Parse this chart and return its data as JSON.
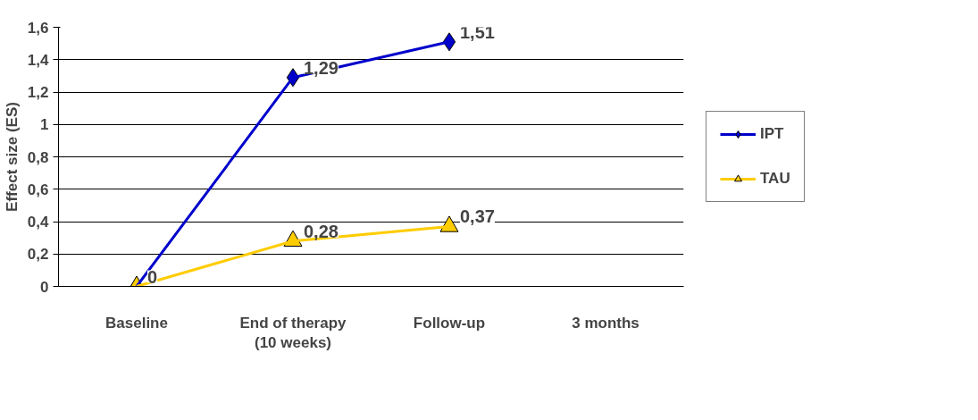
{
  "chart_data": {
    "type": "line",
    "ylabel": "Effect size (ES)",
    "categories": [
      "Baseline",
      "End of therapy  (10 weeks)",
      "Follow-up",
      "3 months"
    ],
    "series": [
      {
        "name": "IPT",
        "color": "#0000cc",
        "marker": "diamond",
        "values": [
          0,
          1.29,
          1.51,
          null
        ],
        "value_labels": [
          "0",
          "1,29",
          "1,51",
          null
        ]
      },
      {
        "name": "TAU",
        "color": "#ffcc00",
        "marker": "triangle",
        "values": [
          0,
          0.28,
          0.37,
          null
        ],
        "value_labels": [
          null,
          "0,28",
          "0,37",
          null
        ]
      }
    ],
    "ylim": [
      0,
      1.6
    ],
    "yticks": [
      0,
      {
        "value": 0.2,
        "label": "0,2"
      },
      {
        "value": 0.4,
        "label": "0,4"
      },
      {
        "value": 0.6,
        "label": "0,6"
      },
      {
        "value": 0.8,
        "label": "0,8"
      },
      1,
      {
        "value": 1.2,
        "label": "1,2"
      },
      {
        "value": 1.4,
        "label": "1,4"
      },
      {
        "value": 1.6,
        "label": "1,6"
      }
    ],
    "grid": "y",
    "legend": "right",
    "line_style": "solid"
  }
}
